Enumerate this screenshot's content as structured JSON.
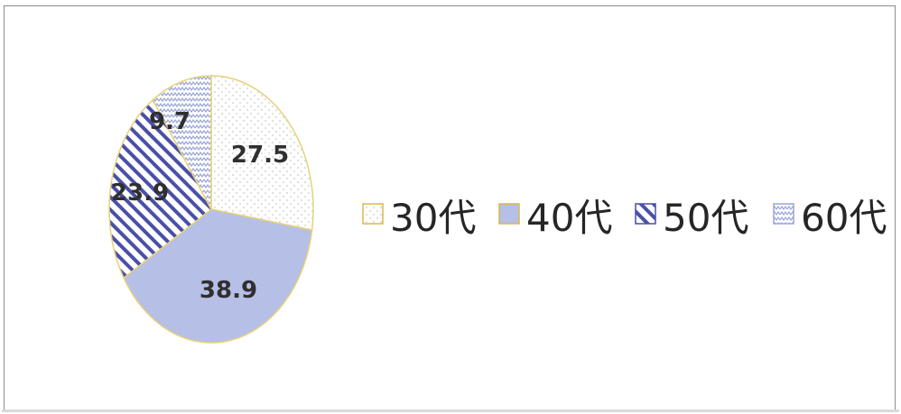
{
  "chart_data": {
    "type": "pie",
    "title": "",
    "categories": [
      "30代",
      "40代",
      "50代",
      "60代"
    ],
    "values": [
      27.5,
      38.9,
      23.9,
      9.7
    ],
    "value_labels": [
      "27.5",
      "38.9",
      "23.9",
      "9.7"
    ],
    "legend": {
      "placement": "right",
      "entries": [
        {
          "label": "30代",
          "fill": "dots",
          "color": "#c8c8c8",
          "border": "#d9b84a"
        },
        {
          "label": "40代",
          "fill": "solid",
          "color": "#b6bfe6",
          "border": "#d9b84a"
        },
        {
          "label": "50代",
          "fill": "diagonal-hatch",
          "color": "#4a4fa8",
          "border": "#4a4fa8"
        },
        {
          "label": "60代",
          "fill": "zigzag",
          "color": "#9aa6d6",
          "border": "#9aa6d6"
        }
      ]
    },
    "start_angle_deg": 0,
    "direction": "clockwise"
  },
  "colors": {
    "slice_border": "#e6d27a",
    "outline": "#8c8c8c"
  }
}
